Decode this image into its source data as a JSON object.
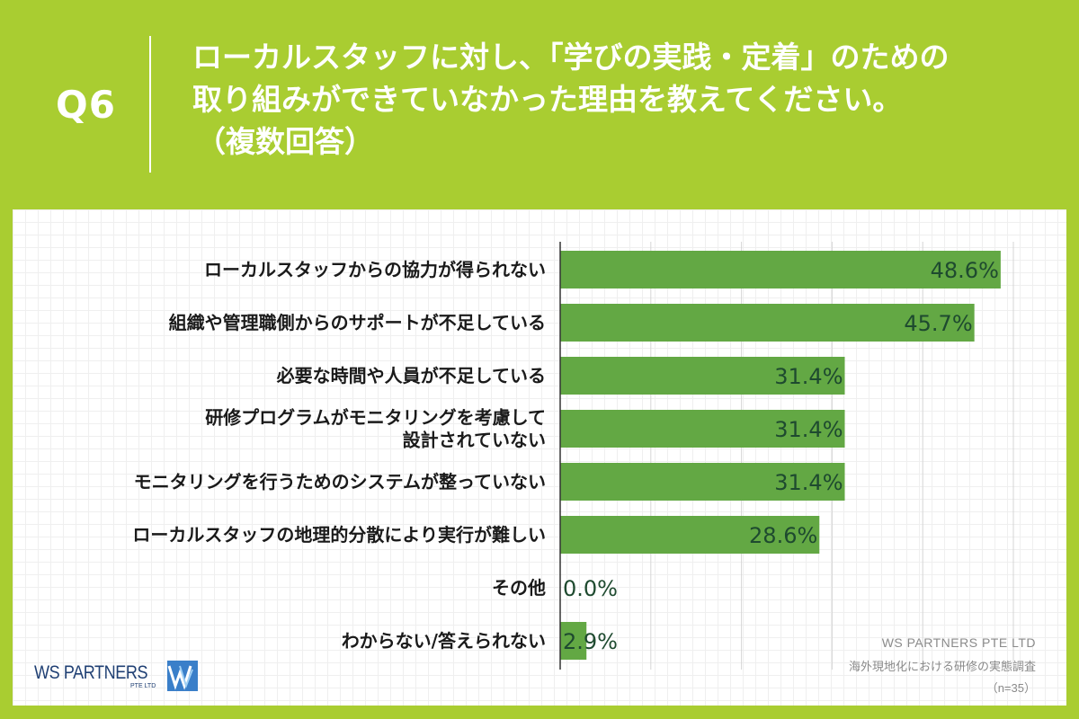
{
  "header": {
    "qnum": "Q6",
    "title_lines": [
      "ローカルスタッフに対し、「学びの実践・定着」のための",
      "取り組みができていなかった理由を教えてください。",
      "（複数回答）"
    ]
  },
  "chart_data": {
    "type": "bar",
    "orientation": "horizontal",
    "categories": [
      [
        "ローカルスタッフからの協力が得られない"
      ],
      [
        "組織や管理職側からのサポートが不足している"
      ],
      [
        "必要な時間や人員が不足している"
      ],
      [
        "研修プログラムがモニタリングを考慮して",
        "設計されていない"
      ],
      [
        "モニタリングを行うためのシステムが整っていない"
      ],
      [
        "ローカルスタッフの地理的分散により実行が難しい"
      ],
      [
        "その他"
      ],
      [
        "わからない/答えられない"
      ]
    ],
    "values": [
      48.6,
      45.7,
      31.4,
      31.4,
      31.4,
      28.6,
      0.0,
      2.9
    ],
    "value_labels": [
      "48.6%",
      "45.7%",
      "31.4%",
      "31.4%",
      "31.4%",
      "28.6%",
      "0.0%",
      "2.9%"
    ],
    "xlim": [
      0,
      50
    ],
    "grid": true,
    "colors": {
      "bar": "#63a844",
      "label_text": "#1e4a2f"
    }
  },
  "watermark": {
    "company": "WS PARTNERS PTE LTD",
    "survey": "海外現地化における研修の実態調査",
    "n": "（n=35）"
  },
  "logo": {
    "text": "WS PARTNERS",
    "sub": "PTE LTD"
  },
  "colors": {
    "background": "#a9cd31",
    "panel": "#ffffff",
    "logo": "#1f3f73"
  }
}
